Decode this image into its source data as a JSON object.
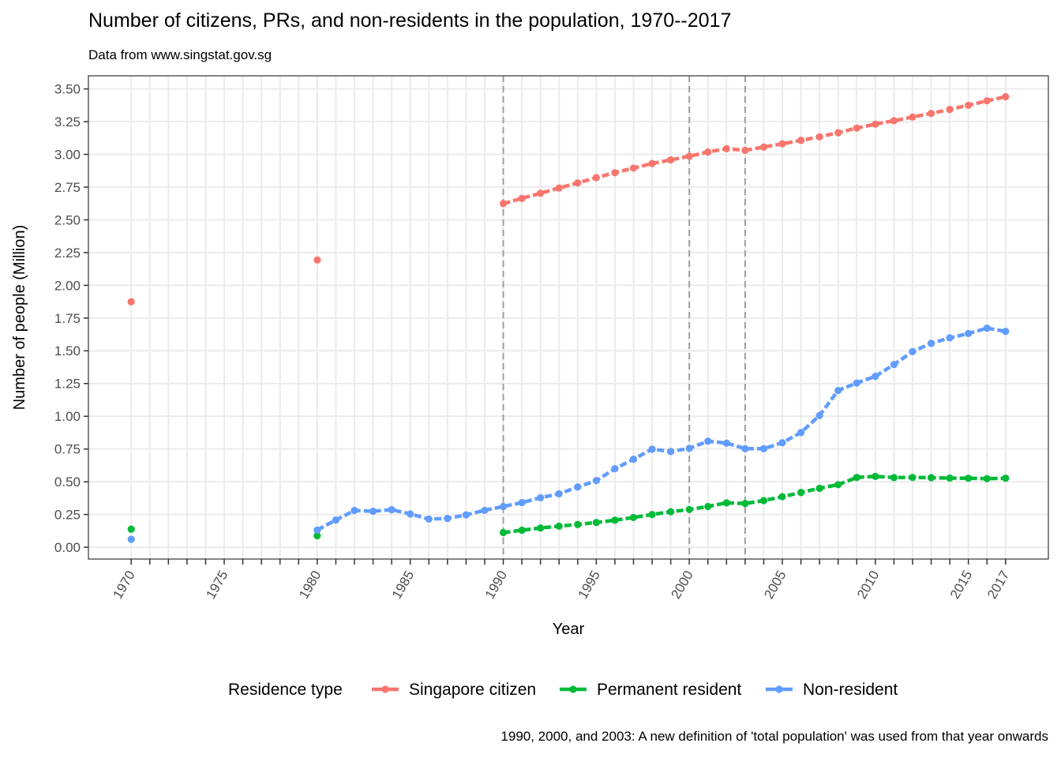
{
  "chart_data": {
    "type": "line",
    "title": "Number of citizens, PRs, and non-residents in the population, 1970--2017",
    "subtitle": "Data from www.singstat.gov.sg",
    "xlabel": "Year",
    "ylabel": "Number of people (Million)",
    "caption": "1990, 2000, and 2003: A new definition of 'total population' was used from that year onwards",
    "xlim": [
      1967.7,
      2019.3
    ],
    "ylim": [
      -0.09,
      3.6
    ],
    "x_ticks": [
      1970,
      1975,
      1980,
      1985,
      1990,
      1995,
      2000,
      2005,
      2010,
      2015,
      2017
    ],
    "x_tick_labels": [
      "1970",
      "1975",
      "1980",
      "1985",
      "1990",
      "1995",
      "2000",
      "2005",
      "2010",
      "2015",
      "2017"
    ],
    "y_ticks": [
      0,
      0.25,
      0.5,
      0.75,
      1.0,
      1.25,
      1.5,
      1.75,
      2.0,
      2.25,
      2.5,
      2.75,
      3.0,
      3.25,
      3.5
    ],
    "y_tick_labels": [
      "0.00",
      "0.25",
      "0.50",
      "0.75",
      "1.00",
      "1.25",
      "1.50",
      "1.75",
      "2.00",
      "2.25",
      "2.50",
      "2.75",
      "3.00",
      "3.25",
      "3.50"
    ],
    "vlines": [
      1990,
      2000,
      2003
    ],
    "grid": true,
    "legend": {
      "title": "Residence type",
      "position": "bottom",
      "items": [
        "Singapore citizen",
        "Permanent resident",
        "Non-resident"
      ]
    },
    "series": [
      {
        "name": "Singapore citizen",
        "color": "#F8766D",
        "points": [
          [
            1970,
            1.874
          ],
          [
            1980,
            2.194
          ]
        ],
        "segments": [
          [
            1990,
            2003
          ],
          [
            2003,
            2017
          ]
        ],
        "line_from": 1990,
        "x": [
          1990,
          1991,
          1992,
          1993,
          1994,
          1995,
          1996,
          1997,
          1998,
          1999,
          2000,
          2001,
          2002,
          2003,
          2004,
          2005,
          2006,
          2007,
          2008,
          2009,
          2010,
          2011,
          2012,
          2013,
          2014,
          2015,
          2016,
          2017
        ],
        "values": [
          2.624,
          2.664,
          2.703,
          2.743,
          2.782,
          2.822,
          2.86,
          2.895,
          2.93,
          2.958,
          2.986,
          3.018,
          3.043,
          3.031,
          3.056,
          3.081,
          3.107,
          3.134,
          3.165,
          3.201,
          3.231,
          3.257,
          3.285,
          3.313,
          3.343,
          3.375,
          3.409,
          3.44
        ]
      },
      {
        "name": "Permanent resident",
        "color": "#00BA38",
        "points": [
          [
            1970,
            0.138
          ],
          [
            1980,
            0.088
          ]
        ],
        "line_from": 1990,
        "x": [
          1990,
          1991,
          1992,
          1993,
          1994,
          1995,
          1996,
          1997,
          1998,
          1999,
          2000,
          2001,
          2002,
          2003,
          2004,
          2005,
          2006,
          2007,
          2008,
          2009,
          2010,
          2011,
          2012,
          2013,
          2014,
          2015,
          2016,
          2017
        ],
        "values": [
          0.112,
          0.13,
          0.147,
          0.161,
          0.174,
          0.189,
          0.206,
          0.227,
          0.25,
          0.271,
          0.288,
          0.311,
          0.339,
          0.334,
          0.356,
          0.386,
          0.418,
          0.45,
          0.478,
          0.533,
          0.541,
          0.532,
          0.533,
          0.531,
          0.528,
          0.527,
          0.524,
          0.527
        ]
      },
      {
        "name": "Non-resident",
        "color": "#619CFF",
        "points": [
          [
            1970,
            0.061
          ]
        ],
        "line_from": 1980,
        "x": [
          1980,
          1981,
          1982,
          1983,
          1984,
          1985,
          1986,
          1987,
          1988,
          1989,
          1990,
          1991,
          1992,
          1993,
          1994,
          1995,
          1996,
          1997,
          1998,
          1999,
          2000,
          2001,
          2002,
          2003,
          2004,
          2005,
          2006,
          2007,
          2008,
          2009,
          2010,
          2011,
          2012,
          2013,
          2014,
          2015,
          2016,
          2017
        ],
        "values": [
          0.131,
          0.208,
          0.281,
          0.275,
          0.287,
          0.254,
          0.215,
          0.22,
          0.247,
          0.282,
          0.311,
          0.341,
          0.378,
          0.408,
          0.46,
          0.509,
          0.6,
          0.672,
          0.749,
          0.731,
          0.755,
          0.81,
          0.795,
          0.753,
          0.753,
          0.798,
          0.876,
          1.006,
          1.197,
          1.254,
          1.305,
          1.395,
          1.494,
          1.557,
          1.599,
          1.632,
          1.673,
          1.648
        ]
      }
    ]
  }
}
